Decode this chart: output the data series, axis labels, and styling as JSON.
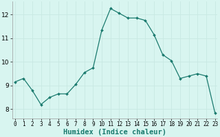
{
  "x": [
    0,
    1,
    2,
    3,
    4,
    5,
    6,
    7,
    8,
    9,
    10,
    11,
    12,
    13,
    14,
    15,
    16,
    17,
    18,
    19,
    20,
    21,
    22,
    23
  ],
  "y": [
    9.15,
    9.3,
    8.8,
    8.2,
    8.5,
    8.65,
    8.65,
    9.05,
    9.55,
    9.75,
    11.35,
    12.25,
    12.05,
    11.85,
    11.85,
    11.75,
    11.15,
    10.3,
    10.05,
    9.3,
    9.4,
    9.5,
    9.4,
    7.85
  ],
  "line_color": "#1a7a6e",
  "marker": "D",
  "marker_size": 2.0,
  "bg_color": "#d8f5f0",
  "grid_color": "#c8e8e2",
  "xlabel": "Humidex (Indice chaleur)",
  "xlabel_fontsize": 7.5,
  "ytick_labels": [
    "8",
    "9",
    "10",
    "11",
    "12"
  ],
  "ytick_values": [
    8,
    9,
    10,
    11,
    12
  ],
  "xtick_values": [
    0,
    1,
    2,
    3,
    4,
    5,
    6,
    7,
    8,
    9,
    10,
    11,
    12,
    13,
    14,
    15,
    16,
    17,
    18,
    19,
    20,
    21,
    22,
    23
  ],
  "ylim": [
    7.6,
    12.55
  ],
  "xlim": [
    -0.3,
    23.3
  ],
  "tick_fontsize": 5.5,
  "ytick_fontsize": 6.5
}
